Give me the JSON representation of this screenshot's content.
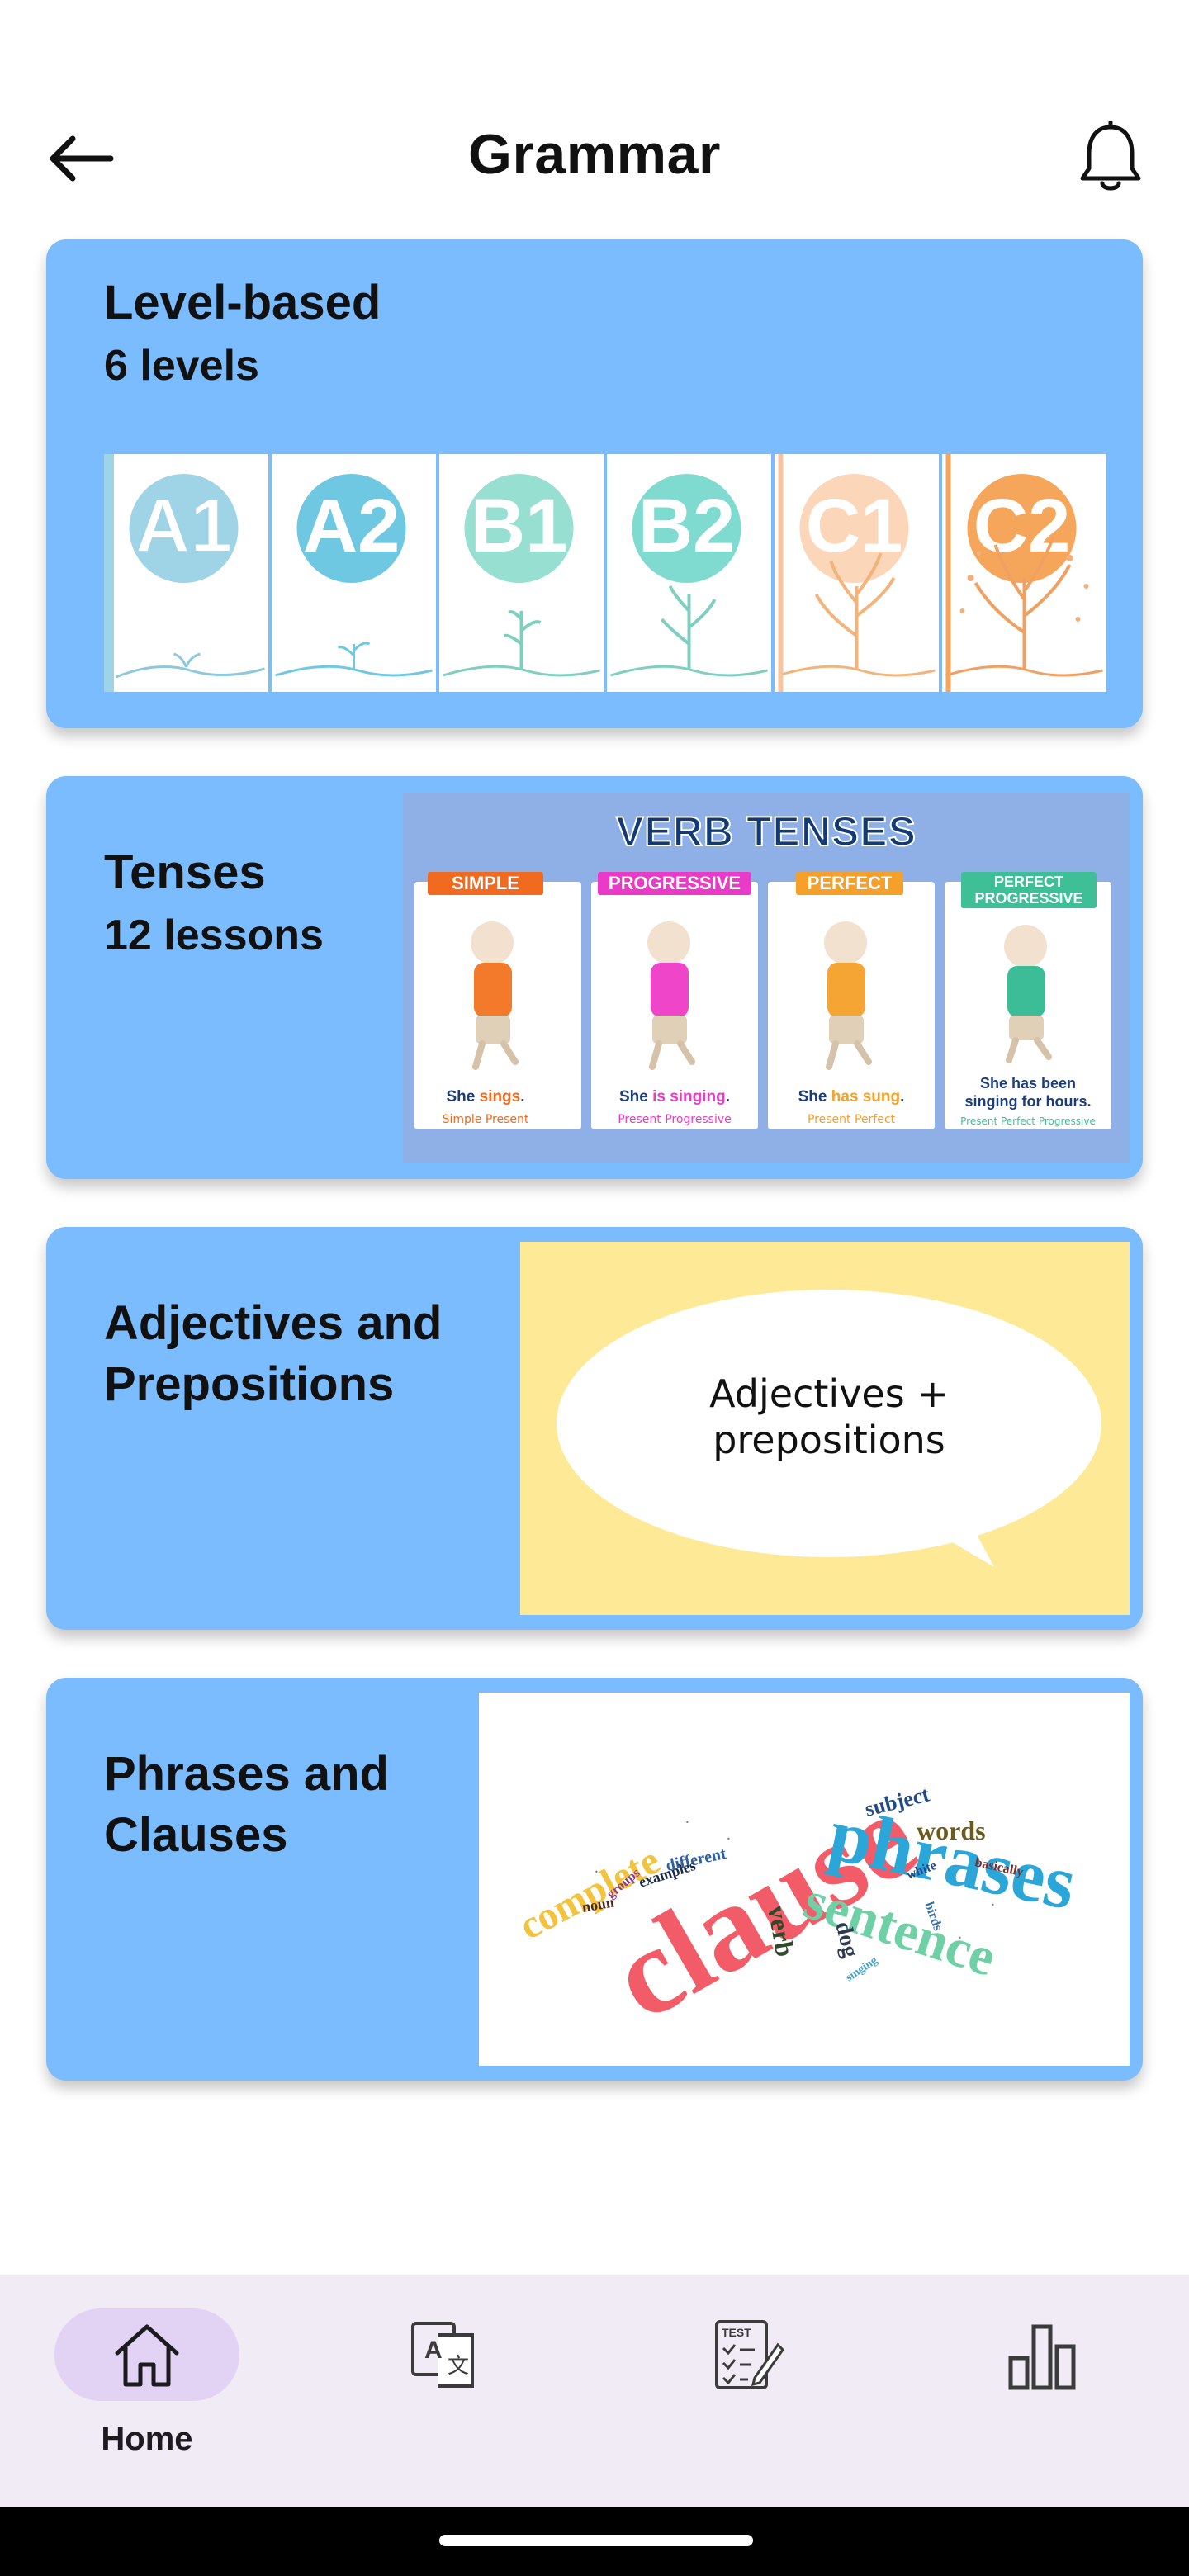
{
  "header": {
    "title": "Grammar",
    "back_icon": "arrow-left-icon",
    "notif_icon": "bell-icon"
  },
  "cards": [
    {
      "title": "Level-based",
      "subtitle": "6 levels",
      "levels": [
        {
          "label": "A1",
          "color": "#9fd3e6"
        },
        {
          "label": "A2",
          "color": "#6ec8e2"
        },
        {
          "label": "B1",
          "color": "#97dfd1"
        },
        {
          "label": "B2",
          "color": "#7fdad0"
        },
        {
          "label": "C1",
          "color": "#f8c49e"
        },
        {
          "label": "C2",
          "color": "#f5a65a"
        }
      ]
    },
    {
      "title": "Tenses",
      "subtitle": "12 lessons",
      "image": {
        "heading": "VERB TENSES",
        "panels": [
          {
            "tag": "SIMPLE",
            "tag_color": "#f06a1f",
            "shirt": "#f27a2a",
            "sentence_a": "She ",
            "sentence_b": "sings",
            "sentence_c": ".",
            "foot": "Simple Present"
          },
          {
            "tag": "PROGRESSIVE",
            "tag_color": "#ea3bc8",
            "shirt": "#ef45c9",
            "sentence_a": "She ",
            "sentence_b": "is singing",
            "sentence_c": ".",
            "foot": "Present Progressive"
          },
          {
            "tag": "PERFECT",
            "tag_color": "#f4a02b",
            "shirt": "#f5a534",
            "sentence_a": "She ",
            "sentence_b": "has sung",
            "sentence_c": ".",
            "foot": "Present Perfect"
          },
          {
            "tag": "PERFECT PROGRESSIVE",
            "tag_color": "#3fbf95",
            "shirt": "#3cbd98",
            "sentence_a": "She has been",
            "sentence_b": "singing for hours.",
            "sentence_c": "",
            "foot": "Present Perfect Progressive"
          }
        ]
      }
    },
    {
      "title": "Adjectives and Prepositions",
      "title_line1": "Adjectives and",
      "title_line2": "Prepositions",
      "image": {
        "line1": "Adjectives +",
        "line2": "prepositions"
      }
    },
    {
      "title": "Phrases and Clauses",
      "title_line1": "Phrases and",
      "title_line2": "Clauses",
      "image": {
        "words": [
          "clause",
          "phrases",
          "sentence",
          "complete",
          "words",
          "subject",
          "verb",
          "dog",
          "different",
          "examples",
          "noun",
          "white",
          "basically",
          "birds",
          "groups",
          "singing"
        ]
      }
    }
  ],
  "nav": [
    {
      "label": "Home",
      "icon": "home-icon",
      "active": true
    },
    {
      "label": "",
      "icon": "translate-icon",
      "active": false
    },
    {
      "label": "",
      "icon": "test-icon",
      "active": false
    },
    {
      "label": "",
      "icon": "bar-chart-icon",
      "active": false
    }
  ]
}
